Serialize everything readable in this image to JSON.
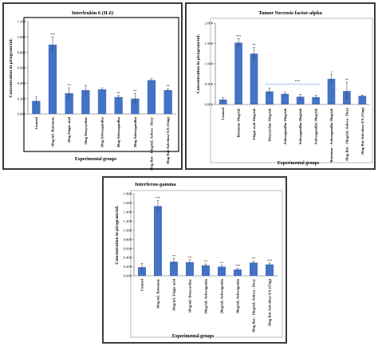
{
  "chart_data": [
    {
      "type": "bar",
      "title": "Interleukin 6 (IL6)",
      "ylabel": "Concentration in picogram/mL",
      "xlabel": "Experimental groups",
      "ylim": [
        0,
        1.2
      ],
      "yticks": [
        "0.000",
        "0.200",
        "0.400",
        "0.600",
        "0.800",
        "1.000",
        "1.200"
      ],
      "categories": [
        "Control",
        "10ug/mL Rotenone",
        "10ug Elagic acid",
        "10ug Doxycycline",
        "10ug Ashwagandha",
        "20ug Ashwagandha",
        "30ug Ashwagandha",
        "10ug Rot - 10ug/mL Ashwa - Doxy",
        "10ug Rot-Ash-doxy-EA (15ug)"
      ],
      "values": [
        0.17,
        0.9,
        0.27,
        0.31,
        0.32,
        0.22,
        0.2,
        0.44,
        0.31
      ],
      "errors": [
        0.05,
        0.1,
        0.07,
        0.06,
        0.02,
        0.02,
        0.07,
        0.02,
        0.02
      ],
      "annotations": [
        "",
        "***",
        "**",
        "",
        "",
        "**",
        "**",
        "",
        "**"
      ],
      "grid": false,
      "color": "#4472c4"
    },
    {
      "type": "bar",
      "title": "Tumor Necrosis factor-alpha",
      "ylabel": "Concentration in picogram/mL",
      "xlabel": "Experimental groups",
      "ylim": [
        0,
        2.0
      ],
      "yticks": [
        "0.000",
        "0.500",
        "1.000",
        "1.500",
        "2.000"
      ],
      "categories": [
        "Control",
        "Rotenone 10ug/mL",
        "Elagic acid 10ug/mL",
        "Doxycycline 10ug/mL",
        "Ashwagandha 10ug/mL",
        "Ashwagandha 20ug/mL",
        "Ashwagandha 30ug/mL",
        "Rotenone - Ashwagandha 20ug/mL",
        "10ug Rot - 10ug/mL Ashwa - Doxy",
        "10ug Rot-Ash-doxy-EA (15ug)"
      ],
      "values": [
        0.12,
        1.52,
        1.25,
        0.32,
        0.26,
        0.19,
        0.18,
        0.63,
        0.33,
        0.21
      ],
      "errors": [
        0.05,
        0.1,
        0.15,
        0.08,
        0.04,
        0.06,
        0.04,
        0.1,
        0.22,
        0.02
      ],
      "annotations": [
        "",
        "***",
        "**",
        "",
        "",
        "",
        "",
        "*",
        "**",
        ""
      ],
      "bracket_label": "***",
      "grid": false,
      "color": "#4472c4"
    },
    {
      "type": "bar",
      "title": "Interferon-gamma",
      "ylabel": "Concentration in picogram/mL",
      "xlabel": "Experimental groups",
      "ylim": [
        0,
        1.8
      ],
      "yticks": [
        "0.000",
        "0.200",
        "0.400",
        "0.600",
        "0.800",
        "1.000",
        "1.200",
        "1.400",
        "1.600",
        "1.800"
      ],
      "categories": [
        "Control",
        "10ug/mL Rotenone",
        "10ug/mL Elagic acid",
        "10ug/mL Doxycycline",
        "10ug/mL Ashwaganda",
        "20ug/mL Ashwaganda",
        "30ug/mL Ashwaganda",
        "10ug Rot - 10ug/mL Ashwa - Doxy",
        "10ug Rot-Ash-doxy-EA (15ug)"
      ],
      "values": [
        0.19,
        1.53,
        0.31,
        0.3,
        0.23,
        0.2,
        0.14,
        0.29,
        0.25
      ],
      "errors": [
        0.08,
        0.12,
        0.07,
        0.05,
        0.03,
        0.03,
        0.03,
        0.03,
        0.03
      ],
      "annotations": [
        "",
        "***",
        "**",
        "**",
        "**",
        "**",
        "***",
        "**",
        "***"
      ],
      "grid": false,
      "color": "#4472c4"
    }
  ]
}
